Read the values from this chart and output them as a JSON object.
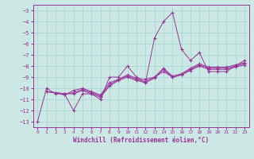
{
  "bg_color": "#cce8e4",
  "grid_color": "#aad8d4",
  "line_color": "#993399",
  "marker_color": "#993399",
  "xlabel": "Windchill (Refroidissement éolien,°C)",
  "xlim": [
    -0.5,
    23.5
  ],
  "ylim": [
    -13.5,
    -2.5
  ],
  "yticks": [
    -13,
    -12,
    -11,
    -10,
    -9,
    -8,
    -7,
    -6,
    -5,
    -4,
    -3
  ],
  "xticks": [
    0,
    1,
    2,
    3,
    4,
    5,
    6,
    7,
    8,
    9,
    10,
    11,
    12,
    13,
    14,
    15,
    16,
    17,
    18,
    19,
    20,
    21,
    22,
    23
  ],
  "lines": [
    {
      "x": [
        0,
        1,
        2,
        3,
        4,
        5,
        6,
        7,
        8,
        9,
        10,
        11,
        12,
        13,
        14,
        15,
        16,
        17,
        18,
        19,
        20,
        21,
        22,
        23
      ],
      "y": [
        -13.0,
        -10.0,
        -10.5,
        -10.5,
        -12.0,
        -10.5,
        -10.5,
        -11.0,
        -9.0,
        -9.0,
        -8.0,
        -9.0,
        -9.5,
        -5.5,
        -4.0,
        -3.2,
        -6.5,
        -7.5,
        -6.8,
        -8.5,
        -8.5,
        -8.5,
        -8.0,
        -7.5
      ]
    },
    {
      "x": [
        1,
        2,
        3,
        4,
        5,
        6,
        7,
        8,
        9,
        10,
        11,
        12,
        13,
        14,
        15,
        16,
        17,
        18,
        19,
        20,
        21,
        22,
        23
      ],
      "y": [
        -10.3,
        -10.4,
        -10.6,
        -10.2,
        -10.0,
        -10.3,
        -10.6,
        -9.5,
        -9.2,
        -8.8,
        -9.1,
        -9.2,
        -9.0,
        -8.5,
        -9.0,
        -8.8,
        -8.4,
        -8.0,
        -8.3,
        -8.3,
        -8.3,
        -8.1,
        -7.9
      ]
    },
    {
      "x": [
        1,
        3,
        4,
        5,
        6,
        7,
        8,
        9,
        10,
        11,
        12,
        13,
        14,
        15,
        16,
        17,
        18,
        19,
        20,
        21,
        22,
        23
      ],
      "y": [
        -10.3,
        -10.5,
        -10.5,
        -10.2,
        -10.5,
        -10.8,
        -9.8,
        -9.3,
        -9.0,
        -9.3,
        -9.5,
        -9.1,
        -8.3,
        -9.0,
        -8.8,
        -8.3,
        -7.9,
        -8.2,
        -8.2,
        -8.2,
        -8.0,
        -7.8
      ]
    },
    {
      "x": [
        1,
        3,
        4,
        5,
        6,
        7,
        8,
        9,
        10,
        11,
        12,
        13,
        14,
        15,
        16,
        17,
        18,
        19,
        20,
        21,
        22,
        23
      ],
      "y": [
        -10.3,
        -10.5,
        -10.4,
        -10.1,
        -10.4,
        -10.7,
        -9.7,
        -9.2,
        -8.9,
        -9.2,
        -9.4,
        -9.0,
        -8.2,
        -8.9,
        -8.7,
        -8.2,
        -7.8,
        -8.1,
        -8.1,
        -8.1,
        -7.9,
        -7.7
      ]
    }
  ]
}
